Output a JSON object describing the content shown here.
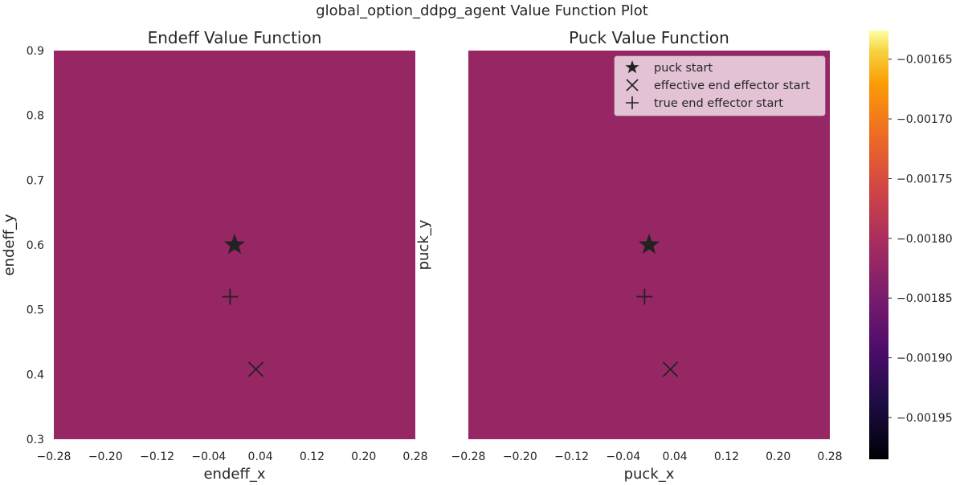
{
  "suptitle": "global_option_ddpg_agent Value Function Plot",
  "chart_data": {
    "type": "heatmap",
    "colormap": "inferno",
    "heatmap_value": -0.00182,
    "colorbar": {
      "range": [
        -0.001985,
        -0.001626
      ],
      "ticks": [
        -0.00165,
        -0.0017,
        -0.00175,
        -0.0018,
        -0.00185,
        -0.0019,
        -0.00195
      ],
      "tick_labels": [
        "−0.00165",
        "−0.00170",
        "−0.00175",
        "−0.00180",
        "−0.00185",
        "−0.00190",
        "−0.00195"
      ]
    },
    "xlim": [
      -0.28,
      0.28
    ],
    "ylim": [
      0.3,
      0.9
    ],
    "xticks": [
      -0.28,
      -0.2,
      -0.12,
      -0.04,
      0.04,
      0.12,
      0.2,
      0.28
    ],
    "xtick_labels": [
      "−0.28",
      "−0.20",
      "−0.12",
      "−0.04",
      "0.04",
      "0.12",
      "0.20",
      "0.28"
    ],
    "yticks": [
      0.3,
      0.4,
      0.5,
      0.6,
      0.7,
      0.8,
      0.9
    ],
    "ytick_labels": [
      "0.3",
      "0.4",
      "0.5",
      "0.6",
      "0.7",
      "0.8",
      "0.9"
    ],
    "markers": [
      {
        "name": "puck start",
        "symbol": "star",
        "x": 0.0,
        "y": 0.6
      },
      {
        "name": "effective end effector start",
        "symbol": "x",
        "x": 0.033,
        "y": 0.408
      },
      {
        "name": "true end effector start",
        "symbol": "plus",
        "x": -0.007,
        "y": 0.52
      }
    ],
    "panels": [
      {
        "title": "Endeff Value Function",
        "xlabel": "endeff_x",
        "ylabel": "endeff_y",
        "show_yticks": true,
        "legend": false
      },
      {
        "title": "Puck Value Function",
        "xlabel": "puck_x",
        "ylabel": "puck_y",
        "show_yticks": false,
        "legend": true,
        "legend_position": "upper-right"
      }
    ],
    "grid": false
  }
}
